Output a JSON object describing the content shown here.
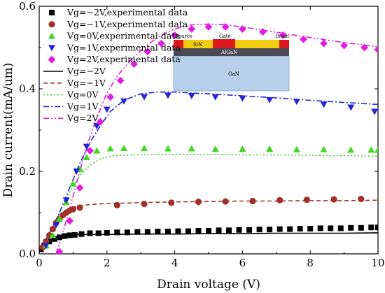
{
  "chart_data": {
    "type": "scatter",
    "xlabel": "Drain voltage (V)",
    "ylabel": "Drain current(mA/um)",
    "xlim": [
      0,
      10
    ],
    "ylim": [
      0,
      0.6
    ],
    "x_ticks": [
      0,
      2,
      4,
      6,
      8,
      10
    ],
    "y_ticks": [
      0.0,
      0.2,
      0.4,
      0.6
    ],
    "y_tick_labels": [
      "0.0",
      "0.2",
      "0.4",
      "0.6"
    ],
    "x_tick_labels": [
      "0",
      "2",
      "4",
      "6",
      "8",
      "10"
    ],
    "legend_placement": "top-left",
    "grid": false,
    "series": [
      {
        "name": "Vg=−2V,experimental data",
        "kind": "markers",
        "marker": "square",
        "color": "#000000",
        "x": [
          0.05,
          0.15,
          0.3,
          0.45,
          0.6,
          0.75,
          0.9,
          1.05,
          1.25,
          1.5,
          1.75,
          2.0,
          2.3,
          2.6,
          2.9,
          3.2,
          3.5,
          3.8,
          4.1,
          4.4,
          4.7,
          5.0,
          5.3,
          5.6,
          5.9,
          6.2,
          6.5,
          6.8,
          7.1,
          7.4,
          7.7,
          8.0,
          8.3,
          8.6,
          8.9,
          9.2,
          9.5,
          9.8,
          10.0
        ],
        "y": [
          0.011,
          0.02,
          0.03,
          0.036,
          0.04,
          0.043,
          0.045,
          0.046,
          0.048,
          0.05,
          0.05,
          0.051,
          0.052,
          0.052,
          0.053,
          0.053,
          0.054,
          0.054,
          0.055,
          0.055,
          0.056,
          0.056,
          0.057,
          0.057,
          0.058,
          0.058,
          0.059,
          0.059,
          0.06,
          0.06,
          0.061,
          0.061,
          0.062,
          0.062,
          0.062,
          0.063,
          0.063,
          0.064,
          0.064
        ]
      },
      {
        "name": "Vg=−1V,experimental data",
        "kind": "markers",
        "marker": "circle",
        "color": "#a0312a",
        "x": [
          0.1,
          0.2,
          0.3,
          0.4,
          0.5,
          0.6,
          0.7,
          0.8,
          0.9,
          1.0,
          1.2,
          2.3,
          3.1,
          3.9,
          4.7,
          5.5,
          6.3,
          7.1,
          7.9,
          8.7,
          9.5
        ],
        "y": [
          0.016,
          0.03,
          0.045,
          0.06,
          0.075,
          0.085,
          0.094,
          0.1,
          0.105,
          0.108,
          0.112,
          0.118,
          0.121,
          0.124,
          0.126,
          0.127,
          0.128,
          0.13,
          0.131,
          0.132,
          0.133
        ]
      },
      {
        "name": "Vg=0V,experimental data",
        "kind": "markers",
        "marker": "triangle-up",
        "color": "#3fd81f",
        "x": [
          0.2,
          0.4,
          0.6,
          0.8,
          1.0,
          1.2,
          1.4,
          1.7,
          2.1,
          2.5,
          3.1,
          3.8,
          4.5,
          5.2,
          6.0,
          6.8,
          7.6,
          8.4,
          9.2,
          9.8,
          10.0
        ],
        "y": [
          0.02,
          0.045,
          0.085,
          0.125,
          0.17,
          0.205,
          0.234,
          0.25,
          0.255,
          0.256,
          0.256,
          0.255,
          0.255,
          0.254,
          0.254,
          0.254,
          0.253,
          0.253,
          0.252,
          0.252,
          0.252
        ]
      },
      {
        "name": "Vg=1V,experimental data",
        "kind": "markers",
        "marker": "triangle-down",
        "color": "#2424d6",
        "x": [
          0.2,
          0.5,
          0.8,
          1.1,
          1.4,
          1.7,
          2.0,
          2.5,
          3.1,
          3.8,
          4.5,
          5.2,
          6.0,
          6.8,
          7.6,
          8.4,
          9.2,
          9.9
        ],
        "y": [
          0.02,
          0.07,
          0.13,
          0.2,
          0.26,
          0.31,
          0.35,
          0.37,
          0.38,
          0.384,
          0.383,
          0.38,
          0.377,
          0.373,
          0.369,
          0.362,
          0.355,
          0.345
        ]
      },
      {
        "name": "Vg=2V,experimental data",
        "kind": "markers",
        "marker": "diamond",
        "color": "#e21be2",
        "x": [
          0.6,
          0.9,
          1.2,
          1.5,
          1.8,
          2.1,
          2.4,
          2.8,
          3.2,
          3.6,
          4.0,
          4.5,
          5.0,
          5.5,
          6.0,
          6.6,
          7.2,
          7.8,
          8.4,
          9.0,
          9.6,
          10.0
        ],
        "y": [
          0.005,
          0.08,
          0.16,
          0.25,
          0.32,
          0.38,
          0.42,
          0.46,
          0.49,
          0.51,
          0.53,
          0.545,
          0.55,
          0.55,
          0.545,
          0.538,
          0.53,
          0.52,
          0.51,
          0.505,
          0.5,
          0.495
        ]
      },
      {
        "name": "Vg=−2V",
        "kind": "line",
        "dash": "solid",
        "color": "#000000",
        "x": [
          0,
          0.2,
          0.4,
          0.6,
          0.8,
          1.0,
          1.2,
          1.5,
          2.0,
          3.0,
          4.0,
          5.0,
          6.0,
          7.0,
          8.0,
          9.0,
          10.0
        ],
        "y": [
          0.008,
          0.022,
          0.034,
          0.041,
          0.045,
          0.046,
          0.047,
          0.047,
          0.047,
          0.048,
          0.048,
          0.049,
          0.049,
          0.05,
          0.05,
          0.05,
          0.051
        ]
      },
      {
        "name": "Vg=−1V",
        "kind": "line",
        "dash": "dash",
        "color": "#a0312a",
        "x": [
          0,
          0.2,
          0.4,
          0.6,
          0.8,
          1.0,
          1.3,
          1.6,
          2.0,
          3.0,
          4.0,
          5.0,
          6.0,
          7.0,
          8.0,
          9.0,
          10.0
        ],
        "y": [
          0.005,
          0.035,
          0.065,
          0.09,
          0.105,
          0.113,
          0.118,
          0.12,
          0.122,
          0.124,
          0.126,
          0.127,
          0.128,
          0.128,
          0.129,
          0.129,
          0.13
        ]
      },
      {
        "name": "Vg=0V",
        "kind": "line",
        "dash": "dot",
        "color": "#3fd81f",
        "x": [
          0,
          0.3,
          0.6,
          0.9,
          1.2,
          1.5,
          1.8,
          2.2,
          2.8,
          4.0,
          5.0,
          6.0,
          7.0,
          8.0,
          9.0,
          10.0
        ],
        "y": [
          0.005,
          0.05,
          0.1,
          0.15,
          0.19,
          0.215,
          0.23,
          0.238,
          0.24,
          0.241,
          0.241,
          0.24,
          0.24,
          0.239,
          0.238,
          0.237
        ]
      },
      {
        "name": "Vg=1V",
        "kind": "line",
        "dash": "dashdot",
        "color": "#2424d6",
        "x": [
          0,
          0.3,
          0.6,
          0.9,
          1.2,
          1.5,
          1.8,
          2.1,
          2.5,
          3.0,
          3.5,
          4.0,
          5.0,
          6.0,
          7.0,
          8.0,
          9.0,
          10.0
        ],
        "y": [
          0.005,
          0.05,
          0.1,
          0.16,
          0.22,
          0.27,
          0.31,
          0.345,
          0.372,
          0.388,
          0.392,
          0.392,
          0.388,
          0.383,
          0.378,
          0.372,
          0.367,
          0.362
        ]
      },
      {
        "name": "Vg=2V",
        "kind": "line",
        "dash": "dashdotdot",
        "color": "#e21be2",
        "x": [
          0.5,
          0.8,
          1.1,
          1.4,
          1.7,
          2.0,
          2.3,
          2.7,
          3.1,
          3.5,
          4.0,
          4.5,
          5.0,
          5.5,
          6.0,
          7.0,
          8.0,
          9.0,
          10.0
        ],
        "y": [
          0.0,
          0.08,
          0.17,
          0.26,
          0.33,
          0.39,
          0.43,
          0.47,
          0.5,
          0.525,
          0.545,
          0.555,
          0.557,
          0.555,
          0.55,
          0.537,
          0.524,
          0.512,
          0.502
        ]
      }
    ],
    "inset": {
      "labels": {
        "source": "Source",
        "gate": "Gate",
        "drain": "Drain",
        "sin": "SiN",
        "algan": "AlGaN",
        "gan": "GaN"
      },
      "colors": {
        "metal": "#e0161e",
        "sin": "#f2cc0f",
        "algan": "#4a4a55",
        "gan": "#b6d0ea"
      }
    }
  }
}
